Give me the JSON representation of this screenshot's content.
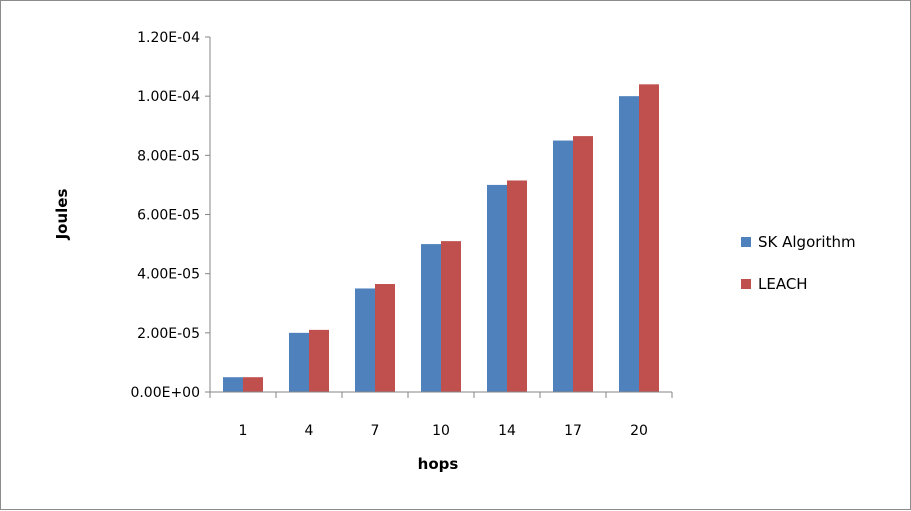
{
  "chart_data": {
    "type": "bar",
    "title": "",
    "xlabel": "hops",
    "ylabel": "Joules",
    "categories": [
      "1",
      "4",
      "7",
      "10",
      "14",
      "17",
      "20"
    ],
    "series": [
      {
        "name": "SK Algorithm",
        "color": "#4f81bd",
        "values": [
          5e-06,
          2e-05,
          3.5e-05,
          5e-05,
          7e-05,
          8.5e-05,
          0.0001
        ]
      },
      {
        "name": "LEACH",
        "color": "#c0504d",
        "values": [
          5e-06,
          2.1e-05,
          3.65e-05,
          5.1e-05,
          7.15e-05,
          8.65e-05,
          0.000104
        ]
      }
    ],
    "ylim": [
      0,
      0.00012
    ],
    "yticks": [
      "0.00E+00",
      "2.00E-05",
      "4.00E-05",
      "6.00E-05",
      "8.00E-05",
      "1.00E-04",
      "1.20E-04"
    ],
    "grid": false,
    "legend_position": "right"
  }
}
